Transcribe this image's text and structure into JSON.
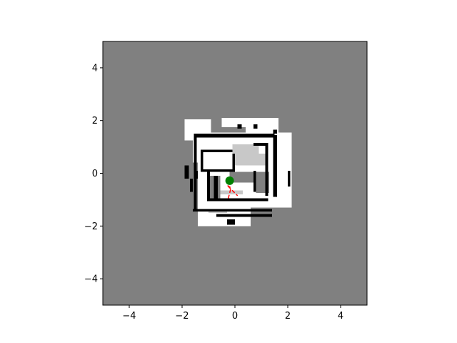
{
  "chart_data": {
    "type": "heatmap",
    "title": "",
    "xlabel": "",
    "ylabel": "",
    "xlim": [
      -5,
      5
    ],
    "ylim": [
      -5,
      5
    ],
    "xticks": [
      -4,
      -2,
      0,
      2,
      4
    ],
    "yticks": [
      -4,
      -2,
      0,
      2,
      4
    ],
    "xtick_labels": [
      "−4",
      "−2",
      "0",
      "2",
      "4"
    ],
    "ytick_labels": [
      "−4",
      "−2",
      "0",
      "2",
      "4"
    ],
    "grid": false,
    "legend": "none",
    "colors": {
      "unknown": "#808080",
      "free": "#ffffff",
      "partially_free": "#c8c8c8",
      "occupied": "#000000",
      "robot": "#008000",
      "path": "#ff0000"
    },
    "occupancy_map": {
      "cell_size": 0.1,
      "free_regions": [
        [
          -1.6,
          -0.5,
          0.4,
          1.3
        ],
        [
          -1.9,
          -0.9,
          1.25,
          2.05
        ],
        [
          0.4,
          1.65,
          1.0,
          2.1
        ],
        [
          -1.4,
          0.6,
          -2.0,
          -1.3
        ],
        [
          -1.4,
          2.15,
          -1.3,
          1.55
        ],
        [
          1.65,
          2.15,
          -0.95,
          1.45
        ],
        [
          -0.5,
          0.4,
          1.75,
          2.1
        ]
      ],
      "partial_regions": [
        [
          -0.1,
          0.9,
          0.3,
          1.1
        ],
        [
          0.9,
          1.25,
          0.3,
          0.75
        ],
        [
          -1.0,
          -0.3,
          -1.5,
          -1.35
        ],
        [
          -0.6,
          0.3,
          -0.8,
          -0.65
        ]
      ],
      "unknown_pockets": [
        [
          -0.2,
          0.7,
          -0.35,
          0.05
        ],
        [
          0.8,
          1.3,
          -0.75,
          0.05
        ],
        [
          -0.95,
          -0.55,
          -0.95,
          -0.1
        ]
      ],
      "occupied_segments": [
        [
          -1.55,
          1.5,
          1.35,
          1.5
        ],
        [
          -1.55,
          -1.45,
          -1.45,
          1.5
        ],
        [
          -1.6,
          1.4,
          -1.45,
          -1.35
        ],
        [
          -1.3,
          -0.1,
          0.8,
          0.9
        ],
        [
          -1.3,
          -1.2,
          0.1,
          0.9
        ],
        [
          -1.3,
          0.0,
          0.05,
          0.15
        ],
        [
          -0.1,
          0.0,
          0.05,
          0.75
        ],
        [
          -1.05,
          -0.95,
          -1.05,
          0.15
        ],
        [
          -1.05,
          1.25,
          -1.05,
          -0.95
        ],
        [
          0.7,
          1.25,
          1.05,
          1.15
        ],
        [
          1.15,
          1.25,
          -0.85,
          1.15
        ],
        [
          1.45,
          1.6,
          -0.9,
          1.45
        ],
        [
          -0.7,
          1.4,
          -1.65,
          -1.55
        ],
        [
          -0.8,
          -0.65,
          -0.95,
          -0.1
        ],
        [
          0.7,
          0.8,
          -0.7,
          0.1
        ],
        [
          -1.9,
          -1.75,
          -0.2,
          0.3
        ],
        [
          -1.7,
          -1.6,
          -0.7,
          -0.2
        ],
        [
          -1.5,
          -1.4,
          -0.2,
          0.1
        ],
        [
          0.1,
          0.25,
          1.7,
          1.85
        ],
        [
          0.7,
          0.85,
          1.7,
          1.85
        ],
        [
          1.45,
          1.6,
          1.5,
          1.65
        ],
        [
          2.0,
          2.1,
          -0.5,
          0.1
        ],
        [
          -0.3,
          0.0,
          -1.95,
          -1.75
        ]
      ]
    },
    "robot": {
      "x": -0.2,
      "y": -0.28
    },
    "path": [
      [
        -0.25,
        -0.95
      ],
      [
        -0.15,
        -0.55
      ],
      [
        -0.3,
        -0.45
      ],
      [
        0.1,
        -0.85
      ]
    ]
  }
}
